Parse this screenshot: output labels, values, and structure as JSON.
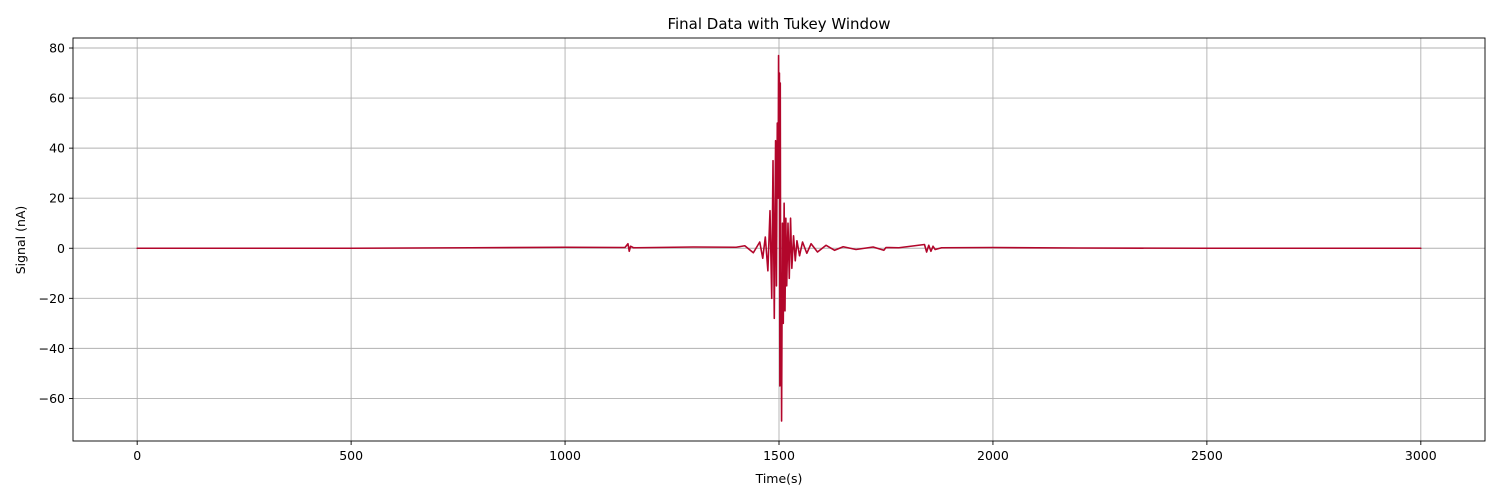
{
  "chart_data": {
    "type": "line",
    "title": "Final Data with Tukey Window",
    "xlabel": "Time(s)",
    "ylabel": "Signal (nA)",
    "xlim": [
      -150,
      3150
    ],
    "ylim": [
      -77,
      84
    ],
    "xticks": [
      0,
      500,
      1000,
      1500,
      2000,
      2500,
      3000
    ],
    "xtick_labels": [
      "0",
      "500",
      "1000",
      "1500",
      "2000",
      "2500",
      "3000"
    ],
    "yticks": [
      -60,
      -40,
      -20,
      0,
      20,
      40,
      60,
      80
    ],
    "ytick_labels": [
      "−60",
      "−40",
      "−20",
      "0",
      "20",
      "40",
      "60",
      "80"
    ],
    "grid": true,
    "color": "#b2062b",
    "series": [
      {
        "color": "#b2062b",
        "x": [
          0,
          500,
          780,
          1000,
          1140,
          1147,
          1150,
          1153,
          1160,
          1300,
          1400,
          1420,
          1440,
          1455,
          1462,
          1468,
          1474,
          1479,
          1483,
          1486,
          1489,
          1492,
          1494,
          1496,
          1498,
          1499,
          1500,
          1501,
          1502,
          1503,
          1504,
          1505,
          1506,
          1508,
          1510,
          1512,
          1514,
          1516,
          1518,
          1521,
          1524,
          1527,
          1530,
          1534,
          1538,
          1542,
          1548,
          1555,
          1565,
          1575,
          1590,
          1610,
          1630,
          1650,
          1680,
          1720,
          1745,
          1750,
          1780,
          1840,
          1845,
          1850,
          1855,
          1860,
          1865,
          1880,
          2000,
          2200,
          2500,
          3000
        ],
        "y": [
          0,
          0,
          0.2,
          0.4,
          0.3,
          1.8,
          -1.2,
          0.8,
          0.2,
          0.5,
          0.4,
          1.0,
          -1.8,
          2.5,
          -4.0,
          4.5,
          -9.0,
          15.0,
          -20.0,
          35.0,
          -28.0,
          43.0,
          -15.0,
          50.0,
          20.0,
          77.0,
          30.0,
          70.0,
          -55.0,
          66.0,
          -40.0,
          -10.0,
          -69.0,
          10.0,
          -30.0,
          18.0,
          -25.0,
          12.0,
          -15.0,
          10.0,
          -12.0,
          12.0,
          -8.0,
          5.0,
          -5.0,
          3.0,
          -3.0,
          2.5,
          -2.0,
          1.8,
          -1.5,
          1.2,
          -0.8,
          0.6,
          -0.5,
          0.5,
          -0.8,
          0.3,
          0.2,
          1.5,
          -1.5,
          1.2,
          -1.2,
          0.8,
          -0.5,
          0.2,
          0.3,
          0.1,
          0,
          0
        ]
      }
    ]
  }
}
